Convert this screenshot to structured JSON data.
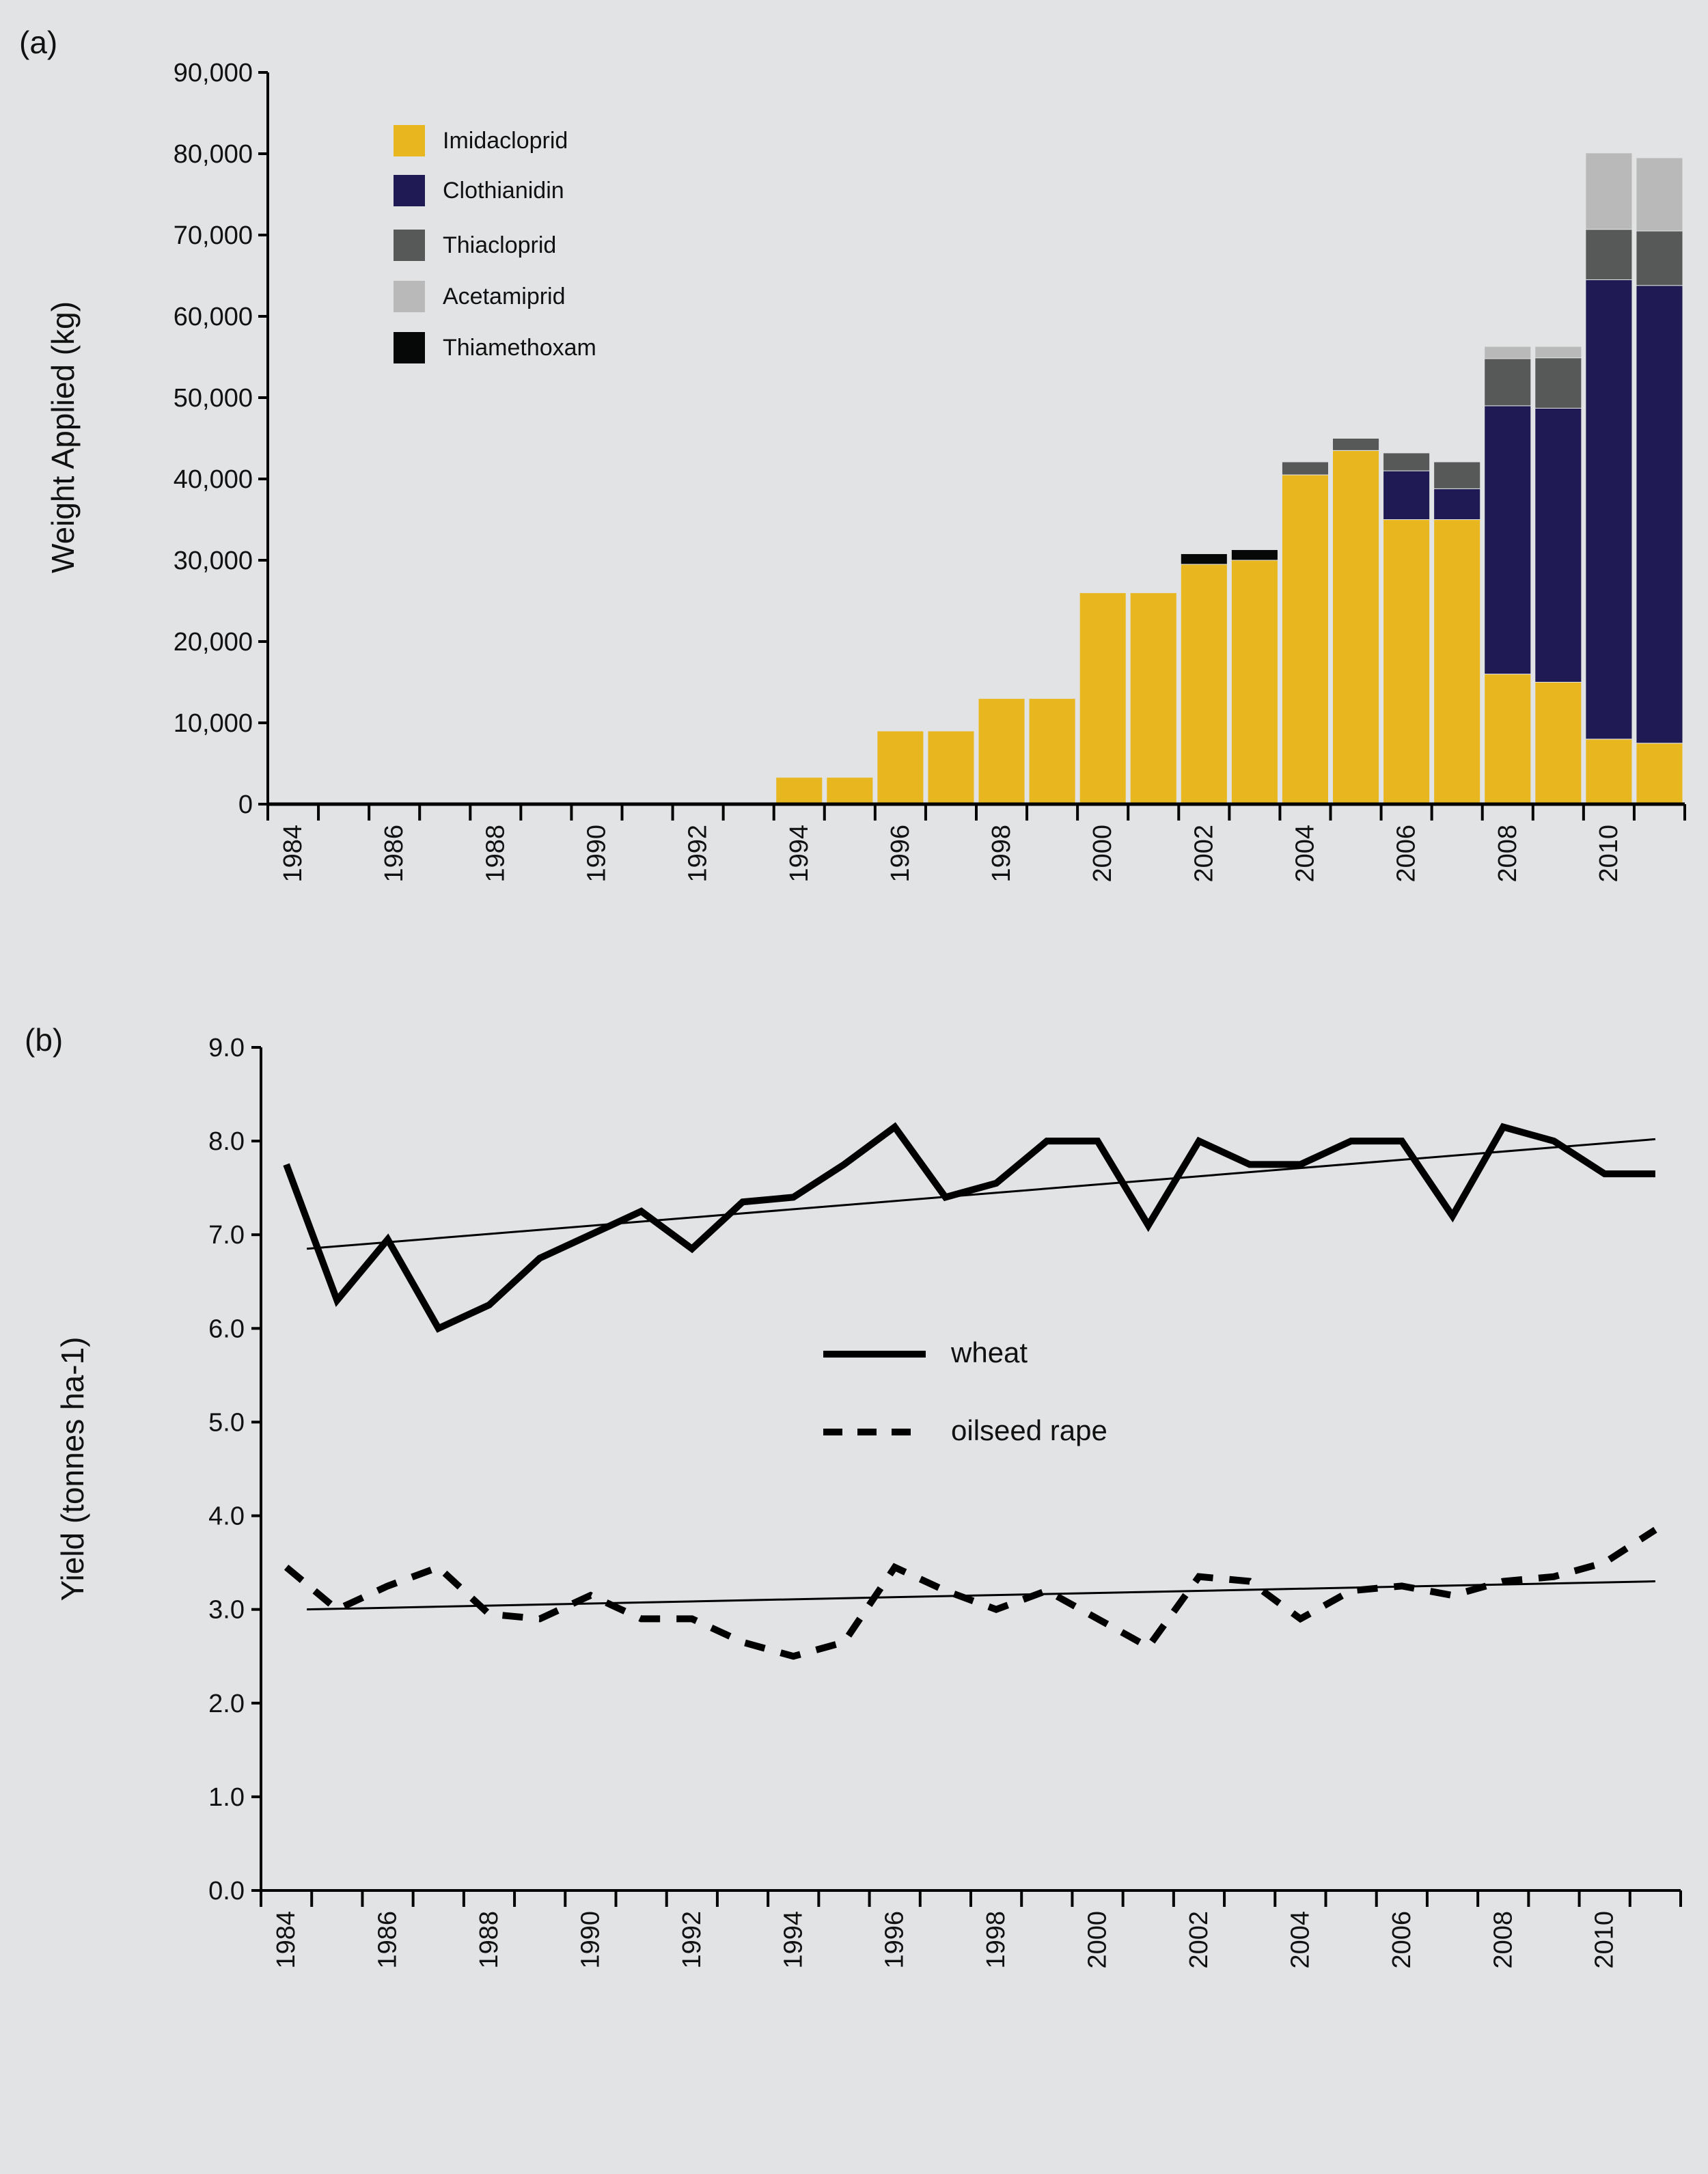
{
  "chart_data": [
    {
      "panel_label": "(a)",
      "type": "bar",
      "stacked": true,
      "ylabel": "Weight Applied (kg)",
      "xlabel": "",
      "ylim": [
        0,
        90000
      ],
      "yticks": [
        "0",
        "10,000",
        "20,000",
        "30,000",
        "40,000",
        "50,000",
        "60,000",
        "70,000",
        "80,000",
        "90,000"
      ],
      "categories": [
        1984,
        1985,
        1986,
        1987,
        1988,
        1989,
        1990,
        1991,
        1992,
        1993,
        1994,
        1995,
        1996,
        1997,
        1998,
        1999,
        2000,
        2001,
        2002,
        2003,
        2004,
        2005,
        2006,
        2007,
        2008,
        2009,
        2010,
        2011
      ],
      "xtick_labels": [
        "1984",
        "1986",
        "1988",
        "1990",
        "1992",
        "1994",
        "1996",
        "1998",
        "2000",
        "2002",
        "2004",
        "2006",
        "2008",
        "2010"
      ],
      "legend_position": "top-left",
      "grid": false,
      "series": [
        {
          "name": "Imidacloprid",
          "color": "#e8b71f",
          "values": [
            0,
            0,
            0,
            0,
            0,
            0,
            0,
            0,
            0,
            0,
            3300,
            3300,
            9000,
            9000,
            13000,
            13000,
            26000,
            26000,
            29500,
            30000,
            40500,
            43500,
            35000,
            35000,
            16000,
            15000,
            8000,
            7500
          ]
        },
        {
          "name": "Clothianidin",
          "color": "#1f1a53",
          "values": [
            0,
            0,
            0,
            0,
            0,
            0,
            0,
            0,
            0,
            0,
            0,
            0,
            0,
            0,
            0,
            0,
            0,
            0,
            0,
            0,
            0,
            0,
            6000,
            3800,
            33000,
            33700,
            56500,
            56300
          ]
        },
        {
          "name": "Thiacloprid",
          "color": "#575958",
          "values": [
            0,
            0,
            0,
            0,
            0,
            0,
            0,
            0,
            0,
            0,
            0,
            0,
            0,
            0,
            0,
            0,
            0,
            0,
            0,
            0,
            1600,
            1500,
            2200,
            3300,
            5800,
            6200,
            6200,
            6700
          ]
        },
        {
          "name": "Acetamiprid",
          "color": "#b9b9b9",
          "values": [
            0,
            0,
            0,
            0,
            0,
            0,
            0,
            0,
            0,
            0,
            0,
            0,
            0,
            0,
            0,
            0,
            0,
            0,
            0,
            0,
            0,
            0,
            0,
            0,
            1500,
            1400,
            9400,
            9000
          ]
        },
        {
          "name": "Thiamethoxam",
          "color": "#060808",
          "values": [
            0,
            0,
            0,
            0,
            0,
            0,
            0,
            0,
            0,
            0,
            0,
            0,
            0,
            0,
            0,
            0,
            0,
            0,
            1300,
            1300,
            0,
            0,
            0,
            0,
            0,
            0,
            0,
            0
          ]
        }
      ]
    },
    {
      "panel_label": "(b)",
      "type": "line",
      "ylabel": "Yield (tonnes ha-1)",
      "xlabel": "",
      "ylim": [
        0,
        9
      ],
      "yticks": [
        "0.0",
        "1.0",
        "2.0",
        "3.0",
        "4.0",
        "5.0",
        "6.0",
        "7.0",
        "8.0",
        "9.0"
      ],
      "x": [
        1984,
        1985,
        1986,
        1987,
        1988,
        1989,
        1990,
        1991,
        1992,
        1993,
        1994,
        1995,
        1996,
        1997,
        1998,
        1999,
        2000,
        2001,
        2002,
        2003,
        2004,
        2005,
        2006,
        2007,
        2008,
        2009,
        2010,
        2011
      ],
      "xtick_labels": [
        "1984",
        "1986",
        "1988",
        "1990",
        "1992",
        "1994",
        "1996",
        "1998",
        "2000",
        "2002",
        "2004",
        "2006",
        "2008",
        "2010"
      ],
      "legend_position": "center",
      "grid": false,
      "series": [
        {
          "name": "wheat",
          "style": "solid",
          "color": "#000000",
          "values": [
            7.75,
            6.3,
            6.95,
            6.0,
            6.25,
            6.75,
            7.0,
            7.25,
            6.85,
            7.35,
            7.4,
            7.75,
            8.15,
            7.4,
            7.55,
            8.0,
            8.0,
            7.1,
            8.0,
            7.75,
            7.75,
            8.0,
            8.0,
            7.2,
            8.15,
            8.0,
            7.65,
            7.65
          ],
          "trend": [
            6.85,
            8.02
          ]
        },
        {
          "name": "oilseed rape",
          "style": "dashed",
          "color": "#000000",
          "values": [
            3.45,
            3.0,
            3.25,
            3.45,
            2.95,
            2.9,
            3.15,
            2.9,
            2.9,
            2.65,
            2.5,
            2.65,
            3.45,
            3.2,
            3.0,
            3.2,
            2.9,
            2.6,
            3.35,
            3.3,
            2.9,
            3.2,
            3.25,
            3.15,
            3.3,
            3.35,
            3.5,
            3.85
          ],
          "trend": [
            3.0,
            3.3
          ]
        }
      ]
    }
  ]
}
